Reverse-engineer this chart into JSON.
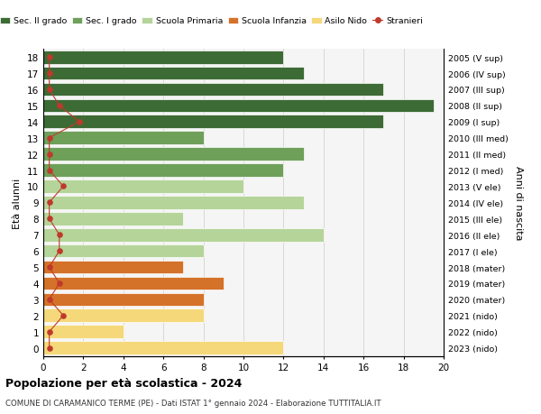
{
  "ages": [
    18,
    17,
    16,
    15,
    14,
    13,
    12,
    11,
    10,
    9,
    8,
    7,
    6,
    5,
    4,
    3,
    2,
    1,
    0
  ],
  "right_labels": [
    "2005 (V sup)",
    "2006 (IV sup)",
    "2007 (III sup)",
    "2008 (II sup)",
    "2009 (I sup)",
    "2010 (III med)",
    "2011 (II med)",
    "2012 (I med)",
    "2013 (V ele)",
    "2014 (IV ele)",
    "2015 (III ele)",
    "2016 (II ele)",
    "2017 (I ele)",
    "2018 (mater)",
    "2019 (mater)",
    "2020 (mater)",
    "2021 (nido)",
    "2022 (nido)",
    "2023 (nido)"
  ],
  "bar_values": [
    12,
    13,
    17,
    19.5,
    17,
    8,
    13,
    12,
    10,
    13,
    7,
    14,
    8,
    7,
    9,
    8,
    8,
    4,
    12
  ],
  "bar_colors": [
    "#3d6b35",
    "#3d6b35",
    "#3d6b35",
    "#3d6b35",
    "#3d6b35",
    "#6ea05a",
    "#6ea05a",
    "#6ea05a",
    "#b5d49a",
    "#b5d49a",
    "#b5d49a",
    "#b5d49a",
    "#b5d49a",
    "#d4722a",
    "#d4722a",
    "#d4722a",
    "#f5d87a",
    "#f5d87a",
    "#f5d87a"
  ],
  "stranieri_values": [
    0.3,
    0.3,
    0.3,
    0.8,
    1.8,
    0.3,
    0.3,
    0.3,
    1.0,
    0.3,
    0.3,
    0.8,
    0.8,
    0.3,
    0.8,
    0.3,
    1.0,
    0.3,
    0.3
  ],
  "legend_labels": [
    "Sec. II grado",
    "Sec. I grado",
    "Scuola Primaria",
    "Scuola Infanzia",
    "Asilo Nido",
    "Stranieri"
  ],
  "legend_colors": [
    "#3d6b35",
    "#6ea05a",
    "#b5d49a",
    "#d4722a",
    "#f5d87a",
    "#c0392b"
  ],
  "ylabel": "Età alunni",
  "right_ylabel": "Anni di nascita",
  "title": "Popolazione per età scolastica - 2024",
  "subtitle": "COMUNE DI CARAMANICO TERME (PE) - Dati ISTAT 1° gennaio 2024 - Elaborazione TUTTITALIA.IT",
  "xlim": [
    0,
    20
  ],
  "background_color": "#ffffff",
  "plot_bg_color": "#f5f5f5",
  "grid_color": "#cccccc",
  "stranieri_color": "#c0392b",
  "bar_edge_color": "#ffffff"
}
